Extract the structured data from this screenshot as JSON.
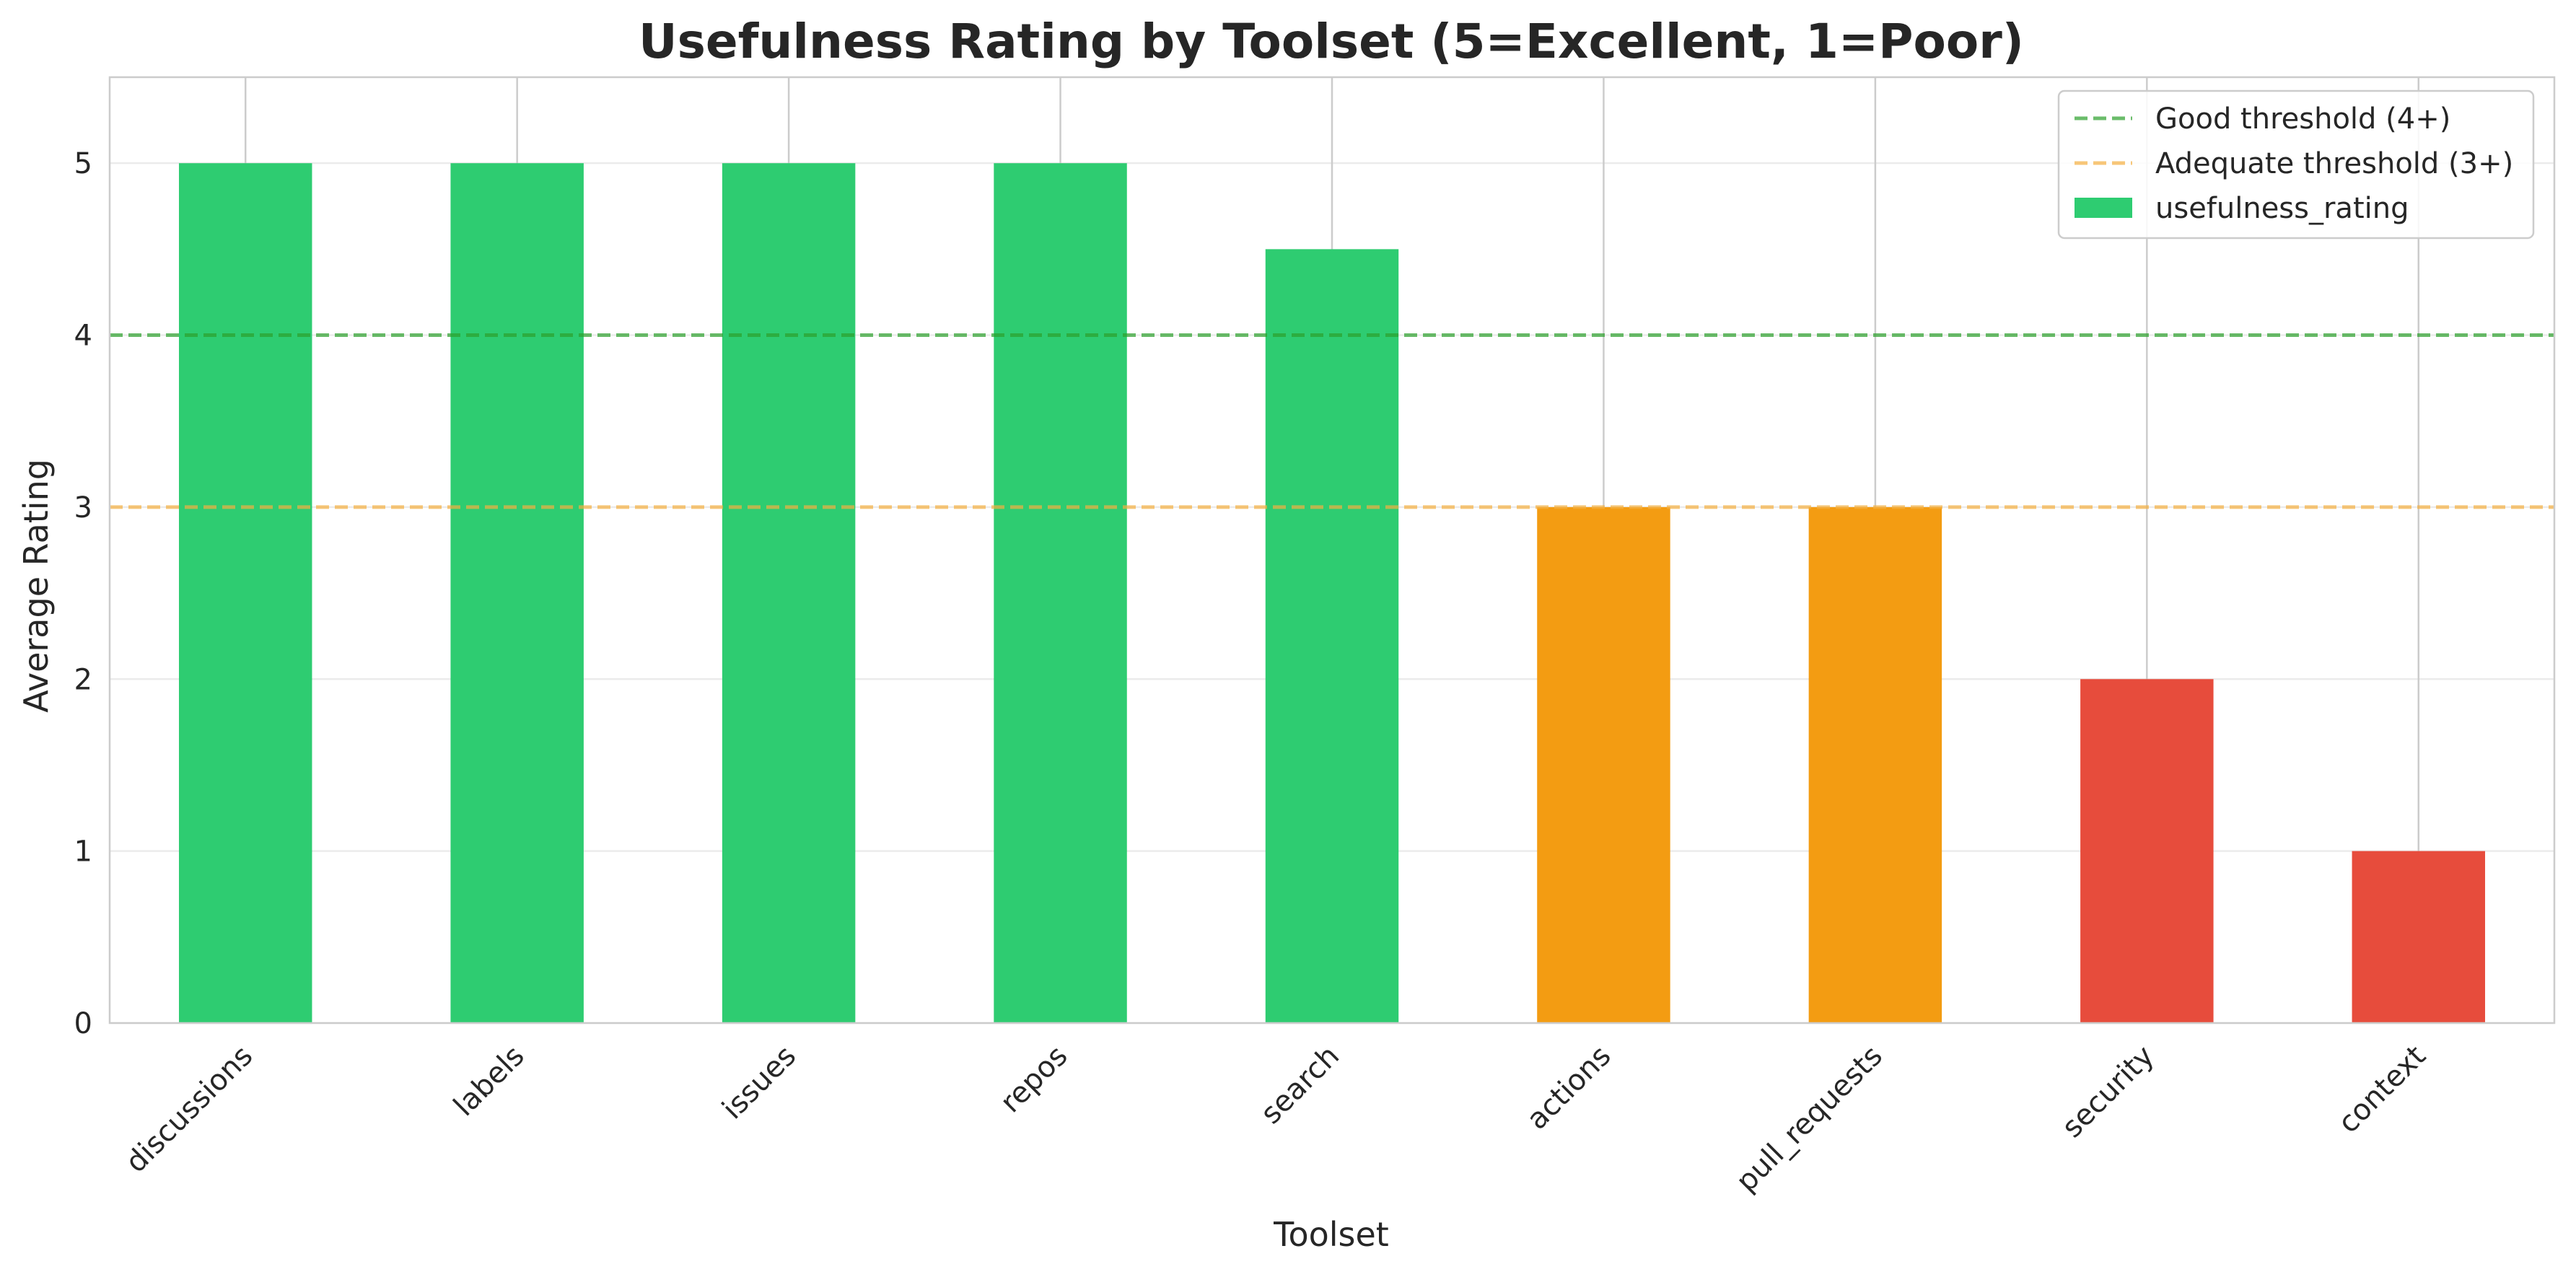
{
  "chart_data": {
    "type": "bar",
    "title": "Usefulness Rating by Toolset (5=Excellent, 1=Poor)",
    "xlabel": "Toolset",
    "ylabel": "Average Rating",
    "categories": [
      "discussions",
      "labels",
      "issues",
      "repos",
      "search",
      "actions",
      "pull_requests",
      "security",
      "context"
    ],
    "series": [
      {
        "name": "usefulness_rating",
        "values": [
          5,
          5,
          5,
          5,
          4.5,
          3,
          3,
          2,
          1
        ],
        "colors": [
          "#2ecc71",
          "#2ecc71",
          "#2ecc71",
          "#2ecc71",
          "#2ecc71",
          "#f39c12",
          "#f39c12",
          "#e74c3c",
          "#e74c3c"
        ]
      }
    ],
    "ylim": [
      0,
      5.5
    ],
    "yticks": [
      0,
      1,
      2,
      3,
      4,
      5
    ],
    "grid": true,
    "legend_position": "top-right",
    "thresholds": [
      {
        "name": "Good threshold (4+)",
        "value": 4,
        "color": "#2ca02c"
      },
      {
        "name": "Adequate threshold (3+)",
        "value": 3,
        "color": "#f5b041"
      }
    ],
    "legend": {
      "entries": [
        "Good threshold (4+)",
        "Adequate threshold (3+)",
        "usefulness_rating"
      ]
    }
  }
}
